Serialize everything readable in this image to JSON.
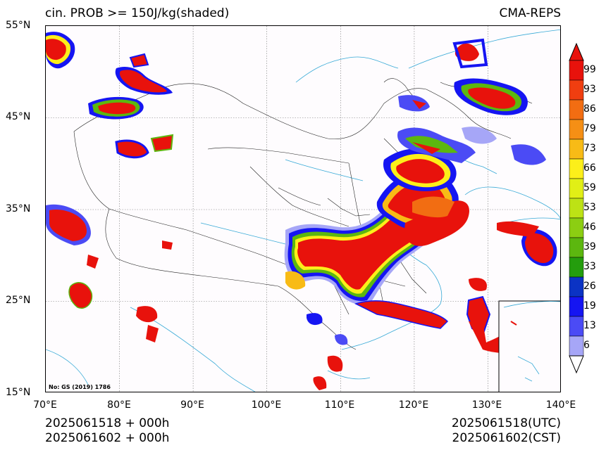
{
  "header": {
    "title_left": "cin. PROB >= 150J/kg(shaded)",
    "title_right": "CMA-REPS"
  },
  "map": {
    "projection_note": "No: GS (2019) 1786",
    "lat_labels": [
      "55°N",
      "45°N",
      "35°N",
      "25°N",
      "15°N"
    ],
    "lon_labels": [
      "70°E",
      "80°E",
      "90°E",
      "100°E",
      "110°E",
      "120°E",
      "130°E",
      "140°E"
    ],
    "lat_range": [
      15,
      55
    ],
    "lon_range": [
      70,
      140
    ],
    "background_color": "#fefcfe",
    "gridlines": true
  },
  "colorbar": {
    "labels": [
      "99",
      "93",
      "86",
      "79",
      "73",
      "66",
      "59",
      "53",
      "46",
      "39",
      "33",
      "26",
      "19",
      "13",
      "6"
    ],
    "colors": [
      "#e8120c",
      "#f03e10",
      "#f26d12",
      "#f58f15",
      "#f8bb16",
      "#fcef1a",
      "#e1ef16",
      "#bde215",
      "#8cce12",
      "#5cb70f",
      "#249d0d",
      "#0b33c4",
      "#1515f2",
      "#4b4bf5",
      "#a6a6f7"
    ],
    "extend": "both"
  },
  "footer": {
    "left_line1": "2025061518  +  000h",
    "left_line2": "2025061602  +  000h",
    "right_line1": "2025061518(UTC)",
    "right_line2": "2025061602(CST)"
  }
}
